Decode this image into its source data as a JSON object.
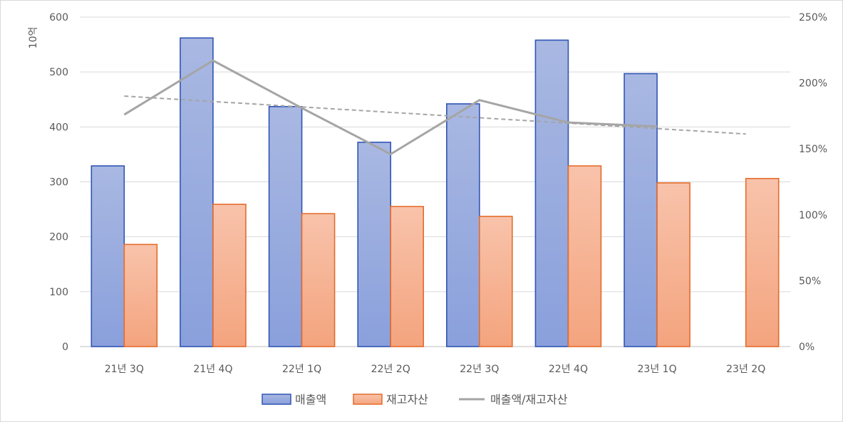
{
  "chart_data": {
    "type": "bar",
    "title": "",
    "y_left_label": "10억",
    "y_left_ticks": [
      "0",
      "100",
      "200",
      "300",
      "400",
      "500",
      "600"
    ],
    "y_left_range": [
      0,
      600
    ],
    "y_right_ticks": [
      "0%",
      "50%",
      "100%",
      "150%",
      "200%",
      "250%"
    ],
    "y_right_range": [
      0,
      250
    ],
    "categories": [
      "21년 3Q",
      "21년 4Q",
      "22년 1Q",
      "22년 2Q",
      "22년 3Q",
      "22년 4Q",
      "23년 1Q",
      "23년 2Q"
    ],
    "series": [
      {
        "name": "매출액",
        "type": "bar",
        "axis": "left",
        "color": "#4472C4",
        "values": [
          329,
          562,
          437,
          372,
          442,
          558,
          497,
          null
        ]
      },
      {
        "name": "재고자산",
        "type": "bar",
        "axis": "left",
        "color": "#ED7D31",
        "values": [
          186,
          259,
          242,
          255,
          237,
          329,
          298,
          306
        ]
      },
      {
        "name": "매출액/재고자산",
        "type": "line",
        "axis": "right",
        "color": "#A5A5A5",
        "values": [
          176,
          217,
          181,
          146,
          187,
          170,
          167,
          null
        ]
      }
    ],
    "trendline": {
      "of": "매출액/재고자산",
      "style": "dashed",
      "color": "#A5A5A5"
    },
    "grid": true,
    "legend_position": "bottom"
  }
}
